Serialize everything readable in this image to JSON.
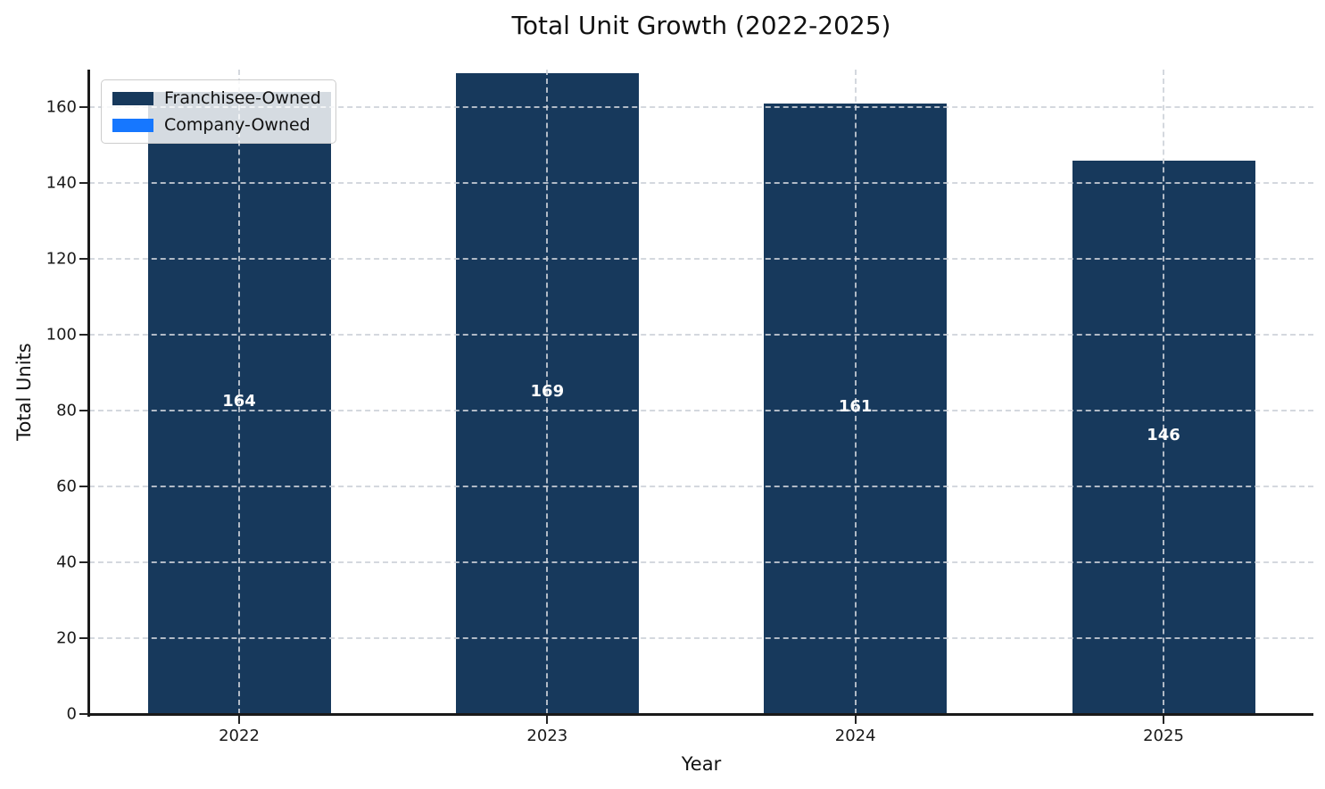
{
  "chart_data": {
    "type": "bar",
    "title": "Total Unit Growth (2022-2025)",
    "xlabel": "Year",
    "ylabel": "Total Units",
    "categories": [
      "2022",
      "2023",
      "2024",
      "2025"
    ],
    "series": [
      {
        "name": "Franchisee-Owned",
        "color": "#17395c",
        "values": [
          164,
          169,
          161,
          146
        ],
        "bar_labels": [
          "164",
          "169",
          "161",
          "146"
        ]
      },
      {
        "name": "Company-Owned",
        "color": "#1677ff",
        "values": [
          0,
          0,
          0,
          0
        ],
        "bar_labels": null
      }
    ],
    "ylim": [
      0,
      170
    ],
    "yticks": [
      0,
      20,
      40,
      60,
      80,
      100,
      120,
      140,
      160
    ],
    "grid": true,
    "grid_style": "dashed",
    "legend_position": "upper-left",
    "bar_label_color": "#ffffff",
    "spine_color": "#1a1a1a",
    "background_color": "#ffffff"
  }
}
